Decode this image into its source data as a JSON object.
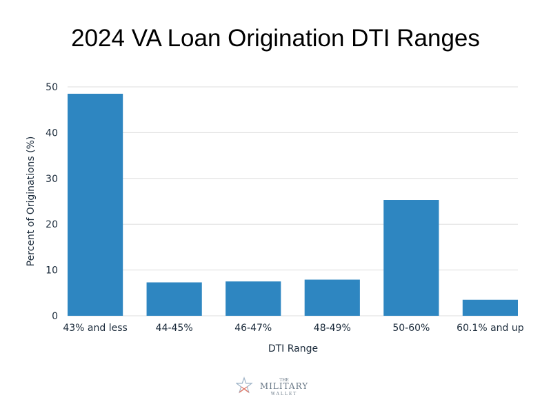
{
  "chart_data": {
    "type": "bar",
    "title": "2024 VA Loan Origination DTI Ranges",
    "xlabel": "DTI Range",
    "ylabel": "Percent of Originations (%)",
    "categories": [
      "43% and less",
      "44-45%",
      "46-47%",
      "48-49%",
      "50-60%",
      "60.1% and up"
    ],
    "values": [
      48.5,
      7.3,
      7.5,
      7.9,
      25.3,
      3.5
    ],
    "ylim": [
      0,
      50
    ],
    "yticks": [
      0,
      10,
      20,
      30,
      40,
      50
    ],
    "grid": true,
    "bar_color": "#2e86c1"
  },
  "logo": {
    "small": "THE",
    "main": "MILITARY",
    "sub": "WALLET"
  }
}
